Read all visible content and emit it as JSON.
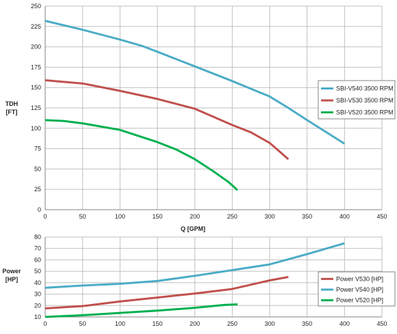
{
  "chart_data": [
    {
      "type": "line",
      "ylabel_lines": [
        "TDH",
        "[FT]"
      ],
      "xlabel": "Q [GPM]",
      "xlim": [
        0,
        450
      ],
      "ylim": [
        0,
        250
      ],
      "xticks": [
        0,
        50,
        100,
        150,
        200,
        250,
        300,
        350,
        400,
        450
      ],
      "yticks": [
        0,
        25,
        50,
        75,
        100,
        125,
        150,
        175,
        200,
        225,
        250
      ],
      "grid": true,
      "legend_position": "right",
      "series": [
        {
          "name": "SBI-V540 3500 RPM",
          "color": "#4bacc6",
          "x": [
            0,
            50,
            100,
            130,
            150,
            200,
            250,
            300,
            325,
            350,
            400
          ],
          "y": [
            232,
            221,
            209,
            201,
            194,
            176,
            158,
            139,
            125,
            110,
            81
          ]
        },
        {
          "name": "SBI-V530 3500 RPM",
          "color": "#c0504d",
          "x": [
            0,
            50,
            100,
            150,
            200,
            250,
            275,
            300,
            325
          ],
          "y": [
            159,
            155,
            146,
            136,
            124,
            104,
            95,
            82,
            62
          ]
        },
        {
          "name": "SBI-V520 3500 RPM",
          "color": "#00b050",
          "x": [
            0,
            25,
            50,
            100,
            150,
            175,
            200,
            225,
            245,
            257
          ],
          "y": [
            110,
            109,
            106,
            98,
            83,
            74,
            62,
            47,
            34,
            24
          ]
        }
      ]
    },
    {
      "type": "line",
      "ylabel_lines": [
        "Power",
        "[HP]"
      ],
      "xlabel": "",
      "xlim": [
        0,
        450
      ],
      "ylim": [
        10,
        80
      ],
      "xticks": [
        0,
        50,
        100,
        150,
        200,
        250,
        300,
        350,
        400,
        450
      ],
      "yticks": [
        10,
        20,
        30,
        40,
        50,
        60,
        70,
        80
      ],
      "grid": true,
      "legend_position": "right",
      "series": [
        {
          "name": "Power V530 [HP]",
          "color": "#c0504d",
          "x": [
            0,
            50,
            100,
            150,
            200,
            250,
            300,
            325
          ],
          "y": [
            17.5,
            19.5,
            23.5,
            27,
            30.5,
            34.5,
            42,
            45
          ]
        },
        {
          "name": "Power V540 [HP]",
          "color": "#4bacc6",
          "x": [
            0,
            50,
            100,
            150,
            200,
            250,
            300,
            350,
            400
          ],
          "y": [
            35.5,
            37.5,
            39,
            41.5,
            46,
            51,
            56,
            65,
            74.5
          ]
        },
        {
          "name": "Power V520 [HP]",
          "color": "#00b050",
          "x": [
            0,
            50,
            100,
            150,
            200,
            240,
            257
          ],
          "y": [
            10,
            11.5,
            13.5,
            15.5,
            18,
            20.5,
            21
          ]
        }
      ]
    }
  ]
}
